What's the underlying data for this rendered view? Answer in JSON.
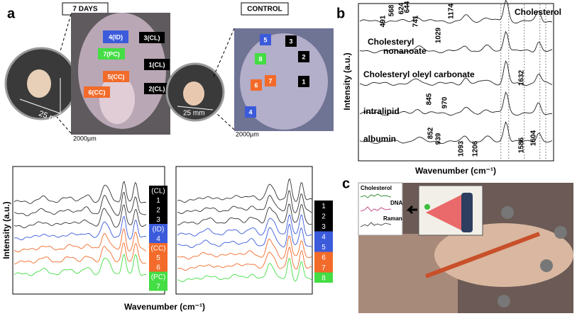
{
  "panel_a": {
    "label": "a",
    "left_title": "7 DAYS",
    "right_title": "CONTROL",
    "dish_scale_left": "25 mm",
    "dish_scale_right": "25 mm",
    "scale_bar_left": "2000µm",
    "scale_bar_right": "2000µm",
    "left_regions": [
      {
        "label": "4(ID)",
        "color": "#3b5bdb"
      },
      {
        "label": "3(CL)",
        "color": "#000000"
      },
      {
        "label": "7(PC)",
        "color": "#44dd44"
      },
      {
        "label": "1(CL)",
        "color": "#000000"
      },
      {
        "label": "5(CC)",
        "color": "#f26b2a"
      },
      {
        "label": "6(CC)",
        "color": "#f26b2a"
      },
      {
        "label": "2(CL)",
        "color": "#000000"
      }
    ],
    "right_regions": [
      {
        "label": "5",
        "color": "#3b5bdb"
      },
      {
        "label": "3",
        "color": "#000000"
      },
      {
        "label": "8",
        "color": "#44dd44"
      },
      {
        "label": "2",
        "color": "#000000"
      },
      {
        "label": "6",
        "color": "#f26b2a"
      },
      {
        "label": "7",
        "color": "#f26b2a"
      },
      {
        "label": "1",
        "color": "#000000"
      },
      {
        "label": "4",
        "color": "#3b5bdb"
      }
    ],
    "left_legend": [
      {
        "items": [
          "(CL)",
          "1",
          "2",
          "3"
        ],
        "color": "#000000"
      },
      {
        "items": [
          "(ID)",
          "4"
        ],
        "color": "#3b5bdb"
      },
      {
        "items": [
          "(CC)",
          "5",
          "6"
        ],
        "color": "#f26b2a"
      },
      {
        "items": [
          "(PC)",
          "7"
        ],
        "color": "#44dd44"
      }
    ],
    "right_legend": [
      {
        "items": [
          "1",
          "2",
          "3"
        ],
        "color": "#000000"
      },
      {
        "items": [
          "4",
          "5"
        ],
        "color": "#3b5bdb"
      },
      {
        "items": [
          "6",
          "7"
        ],
        "color": "#f26b2a"
      },
      {
        "items": [
          "8"
        ],
        "color": "#44dd44"
      }
    ],
    "y_label": "Intensity (a.u.)",
    "x_label": "Wavenumber (cm⁻¹)"
  },
  "panel_b": {
    "label": "b",
    "y_label": "Intensity (a.u.)",
    "x_label": "Wavenumber (cm⁻¹)",
    "traces": [
      "Cholesterol",
      "Cholesteryl",
      "nonanoate",
      "Cholesteryl oleyl carbonate",
      "intralipid",
      "albumin"
    ],
    "peaks": [
      "491",
      "568",
      "624",
      "644",
      "741",
      "1174",
      "1029",
      "1632",
      "845",
      "970",
      "852",
      "939",
      "1093",
      "1206",
      "1586",
      "1604"
    ]
  },
  "panel_c": {
    "label": "c",
    "labels": [
      "Cholesterol",
      "DNA",
      "Raman"
    ]
  }
}
